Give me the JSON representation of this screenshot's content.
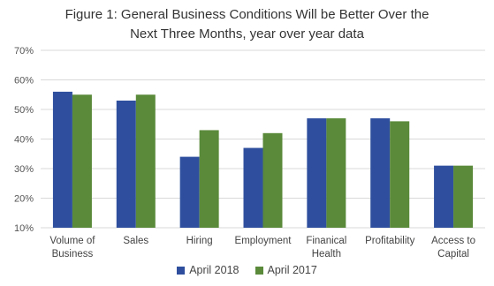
{
  "chart_data": {
    "type": "bar",
    "title_lines": [
      "Figure 1: General Business Conditions Will be Better Over the",
      "Next Three Months, year over year data"
    ],
    "categories": [
      [
        "Volume of",
        "Business"
      ],
      [
        "Sales"
      ],
      [
        "Hiring"
      ],
      [
        "Employment"
      ],
      [
        "Finanical",
        "Health"
      ],
      [
        "Profitability"
      ],
      [
        "Access to",
        "Capital"
      ]
    ],
    "series": [
      {
        "name": "April 2018",
        "color": "#2f4f9e",
        "values": [
          56,
          53,
          34,
          37,
          47,
          47,
          31
        ]
      },
      {
        "name": "April 2017",
        "color": "#5a8a3a",
        "values": [
          55,
          55,
          43,
          42,
          47,
          46,
          31
        ]
      }
    ],
    "ylim": [
      10,
      70
    ],
    "yticks": [
      "10%",
      "20%",
      "30%",
      "40%",
      "50%",
      "60%",
      "70%"
    ],
    "ytick_values": [
      10,
      20,
      30,
      40,
      50,
      60,
      70
    ],
    "grid": true,
    "legend_position": "bottom"
  }
}
